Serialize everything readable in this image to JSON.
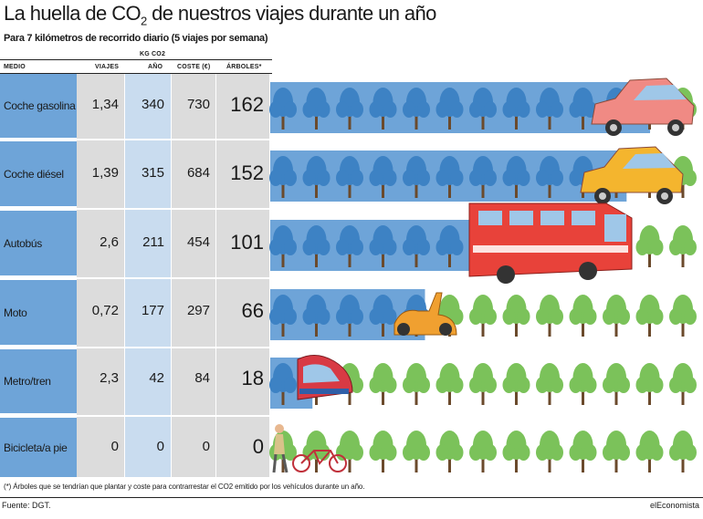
{
  "chart_data": {
    "type": "table",
    "title_pre": "La huella de CO",
    "title_sub": "2",
    "title_post": " de nuestros viajes durante un año",
    "subtitle": "Para 7 kilómetros de recorrido diario (5 viajes por semana)",
    "header_group": "KG CO2",
    "columns": [
      "MEDIO",
      "VIAJES",
      "AÑO",
      "COSTE (€)",
      "ÁRBOLES*"
    ],
    "rows": [
      {
        "medio": "Coche gasolina",
        "viajes": "1,34",
        "ano": "340",
        "coste": "730",
        "arboles": "162",
        "arboles_value": 162,
        "vehicle": "car-pink-icon"
      },
      {
        "medio": "Coche diésel",
        "viajes": "1,39",
        "ano": "315",
        "coste": "684",
        "arboles": "152",
        "arboles_value": 152,
        "vehicle": "car-yellow-icon"
      },
      {
        "medio": "Autobús",
        "viajes": "2,6",
        "ano": "211",
        "coste": "454",
        "arboles": "101",
        "arboles_value": 101,
        "vehicle": "bus-icon"
      },
      {
        "medio": "Moto",
        "viajes": "0,72",
        "ano": "177",
        "coste": "297",
        "arboles": "66",
        "arboles_value": 66,
        "vehicle": "scooter-icon"
      },
      {
        "medio": "Metro/tren",
        "viajes": "2,3",
        "ano": "42",
        "coste": "84",
        "arboles": "18",
        "arboles_value": 18,
        "vehicle": "train-icon"
      },
      {
        "medio": "Bicicleta/a pie",
        "viajes": "0",
        "ano": "0",
        "coste": "0",
        "arboles": "0",
        "arboles_value": 0,
        "vehicle": "bicycle-icon"
      }
    ],
    "arboles_scale_max": 162
  },
  "footnote": "(*) Árboles que se tendrían que plantar y coste para contrarrestar el CO2 emitido por los vehículos durante un año.",
  "source": "Fuente: DGT.",
  "brand": "elEconomista",
  "colors": {
    "blue": "#6ea4d8",
    "light_blue": "#c9dcef",
    "gray": "#dcdcdc",
    "tree_blue": "#3d82c4",
    "tree_green": "#7bc25a",
    "trunk": "#6b4a2c"
  }
}
